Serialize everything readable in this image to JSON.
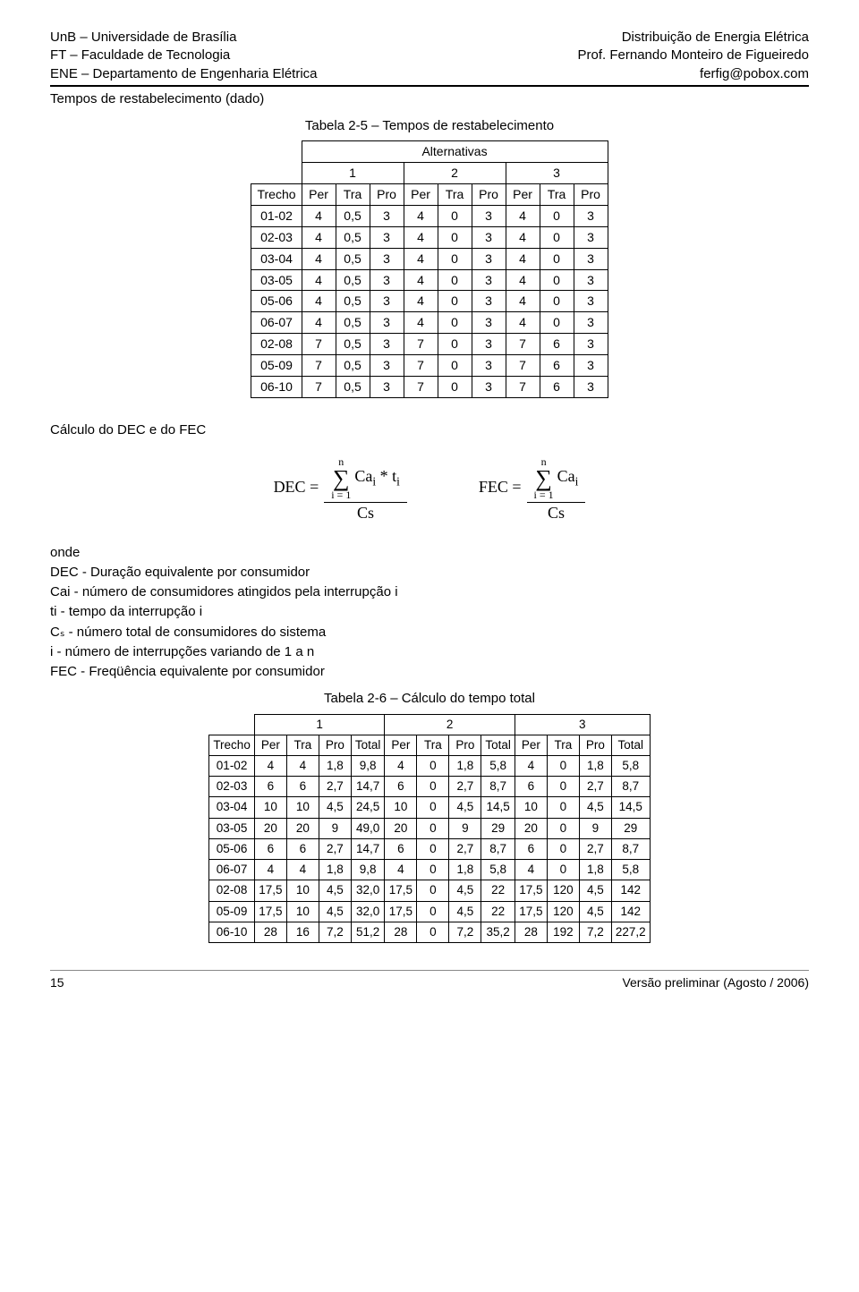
{
  "header": {
    "left": [
      "UnB – Universidade de Brasília",
      "FT – Faculdade de Tecnologia",
      "ENE – Departamento de Engenharia Elétrica"
    ],
    "right": [
      "Distribuição de Energia Elétrica",
      "Prof. Fernando Monteiro de Figueiredo",
      "ferfig@pobox.com"
    ]
  },
  "section_title": "Tempos de restabelecimento (dado)",
  "table1": {
    "caption": "Tabela 2-5 – Tempos de restabelecimento",
    "super_header": "Alternativas",
    "alt_labels": [
      "1",
      "2",
      "3"
    ],
    "col_labels": [
      "Trecho",
      "Per",
      "Tra",
      "Pro",
      "Per",
      "Tra",
      "Pro",
      "Per",
      "Tra",
      "Pro"
    ],
    "rows": [
      [
        "01-02",
        "4",
        "0,5",
        "3",
        "4",
        "0",
        "3",
        "4",
        "0",
        "3"
      ],
      [
        "02-03",
        "4",
        "0,5",
        "3",
        "4",
        "0",
        "3",
        "4",
        "0",
        "3"
      ],
      [
        "03-04",
        "4",
        "0,5",
        "3",
        "4",
        "0",
        "3",
        "4",
        "0",
        "3"
      ],
      [
        "03-05",
        "4",
        "0,5",
        "3",
        "4",
        "0",
        "3",
        "4",
        "0",
        "3"
      ],
      [
        "05-06",
        "4",
        "0,5",
        "3",
        "4",
        "0",
        "3",
        "4",
        "0",
        "3"
      ],
      [
        "06-07",
        "4",
        "0,5",
        "3",
        "4",
        "0",
        "3",
        "4",
        "0",
        "3"
      ],
      [
        "02-08",
        "7",
        "0,5",
        "3",
        "7",
        "0",
        "3",
        "7",
        "6",
        "3"
      ],
      [
        "05-09",
        "7",
        "0,5",
        "3",
        "7",
        "0",
        "3",
        "7",
        "6",
        "3"
      ],
      [
        "06-10",
        "7",
        "0,5",
        "3",
        "7",
        "0",
        "3",
        "7",
        "6",
        "3"
      ]
    ]
  },
  "calc_heading": "Cálculo do DEC e do FEC",
  "formulas": {
    "dec_label": "DEC =",
    "fec_label": "FEC =",
    "sum_top": "n",
    "sum_bottom": "i = 1",
    "dec_num_term": "Ca",
    "dec_num_term2": " * t",
    "fec_num_term": "Ca",
    "denom": "Cs"
  },
  "definitions": {
    "onde": "onde",
    "lines": [
      "DEC - Duração equivalente por consumidor",
      "Cai - número de consumidores atingidos pela interrupção i",
      "ti - tempo da interrupção i",
      "Cₛ - número total de consumidores do sistema",
      "i - número de interrupções variando de 1 a n",
      "FEC - Freqüência equivalente por consumidor"
    ]
  },
  "table2": {
    "caption": "Tabela 2-6 – Cálculo do tempo total",
    "alt_labels": [
      "1",
      "2",
      "3"
    ],
    "col_labels": [
      "Trecho",
      "Per",
      "Tra",
      "Pro",
      "Total",
      "Per",
      "Tra",
      "Pro",
      "Total",
      "Per",
      "Tra",
      "Pro",
      "Total"
    ],
    "rows": [
      [
        "01-02",
        "4",
        "4",
        "1,8",
        "9,8",
        "4",
        "0",
        "1,8",
        "5,8",
        "4",
        "0",
        "1,8",
        "5,8"
      ],
      [
        "02-03",
        "6",
        "6",
        "2,7",
        "14,7",
        "6",
        "0",
        "2,7",
        "8,7",
        "6",
        "0",
        "2,7",
        "8,7"
      ],
      [
        "03-04",
        "10",
        "10",
        "4,5",
        "24,5",
        "10",
        "0",
        "4,5",
        "14,5",
        "10",
        "0",
        "4,5",
        "14,5"
      ],
      [
        "03-05",
        "20",
        "20",
        "9",
        "49,0",
        "20",
        "0",
        "9",
        "29",
        "20",
        "0",
        "9",
        "29"
      ],
      [
        "05-06",
        "6",
        "6",
        "2,7",
        "14,7",
        "6",
        "0",
        "2,7",
        "8,7",
        "6",
        "0",
        "2,7",
        "8,7"
      ],
      [
        "06-07",
        "4",
        "4",
        "1,8",
        "9,8",
        "4",
        "0",
        "1,8",
        "5,8",
        "4",
        "0",
        "1,8",
        "5,8"
      ],
      [
        "02-08",
        "17,5",
        "10",
        "4,5",
        "32,0",
        "17,5",
        "0",
        "4,5",
        "22",
        "17,5",
        "120",
        "4,5",
        "142"
      ],
      [
        "05-09",
        "17,5",
        "10",
        "4,5",
        "32,0",
        "17,5",
        "0",
        "4,5",
        "22",
        "17,5",
        "120",
        "4,5",
        "142"
      ],
      [
        "06-10",
        "28",
        "16",
        "7,2",
        "51,2",
        "28",
        "0",
        "7,2",
        "35,2",
        "28",
        "192",
        "7,2",
        "227,2"
      ]
    ]
  },
  "footer": {
    "page": "15",
    "version": "Versão preliminar (Agosto / 2006)"
  }
}
